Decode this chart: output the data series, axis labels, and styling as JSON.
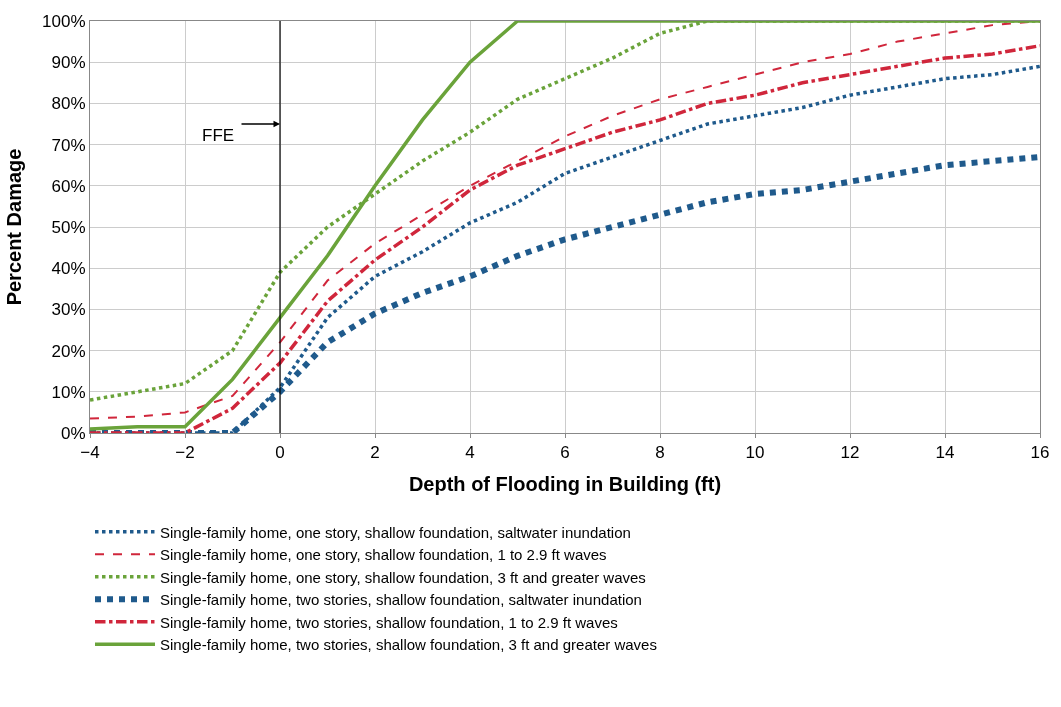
{
  "chart_data": {
    "type": "line",
    "xlabel": "Depth of Flooding in Building (ft)",
    "ylabel": "Percent Damage",
    "x": [
      -4,
      -3,
      -2,
      -1,
      0,
      1,
      2,
      3,
      4,
      5,
      6,
      7,
      8,
      9,
      10,
      11,
      12,
      13,
      14,
      15,
      16
    ],
    "xlim": [
      -4,
      16
    ],
    "xticks": [
      {
        "value": -4,
        "label": "−4"
      },
      {
        "value": -2,
        "label": "−2"
      },
      0,
      2,
      4,
      6,
      8,
      10,
      12,
      14,
      16
    ],
    "ylim": [
      0,
      100
    ],
    "yticks": [
      {
        "value": 0,
        "label": "0%"
      },
      {
        "value": 10,
        "label": "10%"
      },
      {
        "value": 20,
        "label": "20%"
      },
      {
        "value": 30,
        "label": "30%"
      },
      {
        "value": 40,
        "label": "40%"
      },
      {
        "value": 50,
        "label": "50%"
      },
      {
        "value": 60,
        "label": "60%"
      },
      {
        "value": 70,
        "label": "70%"
      },
      {
        "value": 80,
        "label": "80%"
      },
      {
        "value": 90,
        "label": "90%"
      },
      {
        "value": 100,
        "label": "100%"
      }
    ],
    "grid": true,
    "legend": "bottom",
    "marker": "none",
    "ref_lines": [
      {
        "axis": "x",
        "value": 0,
        "label": "FFE",
        "color": "#000000",
        "line_style": "solid"
      }
    ],
    "series": [
      {
        "name": "Single-family home, one story, shallow foundation, saltwater inundation",
        "color": "#1f5a8c",
        "line_style": "dotted",
        "values": [
          0,
          0,
          0,
          0,
          11,
          28,
          38,
          44,
          51,
          56,
          63,
          67,
          71,
          75,
          77,
          79,
          82,
          84,
          86,
          87,
          89
        ]
      },
      {
        "name": "Single-family home, one story, shallow foundation, 1 to 2.9 ft waves",
        "color": "#d0263b",
        "line_style": "dashed",
        "values": [
          3.5,
          4,
          5,
          9,
          22,
          37,
          46,
          53,
          60,
          66,
          72,
          77,
          81,
          84,
          87,
          90,
          92,
          95,
          97,
          99,
          100
        ]
      },
      {
        "name": "Single-family home, one story, shallow foundation, 3 ft and greater waves",
        "color": "#6aa33a",
        "line_style": "dotted",
        "values": [
          8,
          10,
          12,
          20,
          39,
          50,
          58,
          66,
          73,
          81,
          86,
          91,
          97,
          100,
          100,
          100,
          100,
          100,
          100,
          100,
          100
        ]
      },
      {
        "name": "Single-family home, two stories, shallow foundation, saltwater inundation",
        "color": "#1f5a8c",
        "line_style": "dotted",
        "values": [
          0,
          0,
          0,
          0,
          10,
          22,
          29,
          34,
          38,
          43,
          47,
          50,
          53,
          56,
          58,
          59,
          61,
          63,
          65,
          66,
          67
        ]
      },
      {
        "name": "Single-family home, two stories, shallow foundation, 1 to 2.9 ft waves",
        "color": "#d0263b",
        "line_style": "dashdot",
        "values": [
          0,
          0,
          0,
          6,
          17,
          32,
          42,
          50,
          59,
          65,
          69,
          73,
          76,
          80,
          82,
          85,
          87,
          89,
          91,
          92,
          94
        ]
      },
      {
        "name": "Single-family home, two stories, shallow foundation, 3 ft and greater waves",
        "color": "#6aa33a",
        "line_style": "solid",
        "values": [
          1,
          1.5,
          1.5,
          13,
          28,
          43,
          60,
          76,
          90,
          100,
          100,
          100,
          100,
          100,
          100,
          100,
          100,
          100,
          100,
          100,
          100
        ]
      }
    ]
  }
}
